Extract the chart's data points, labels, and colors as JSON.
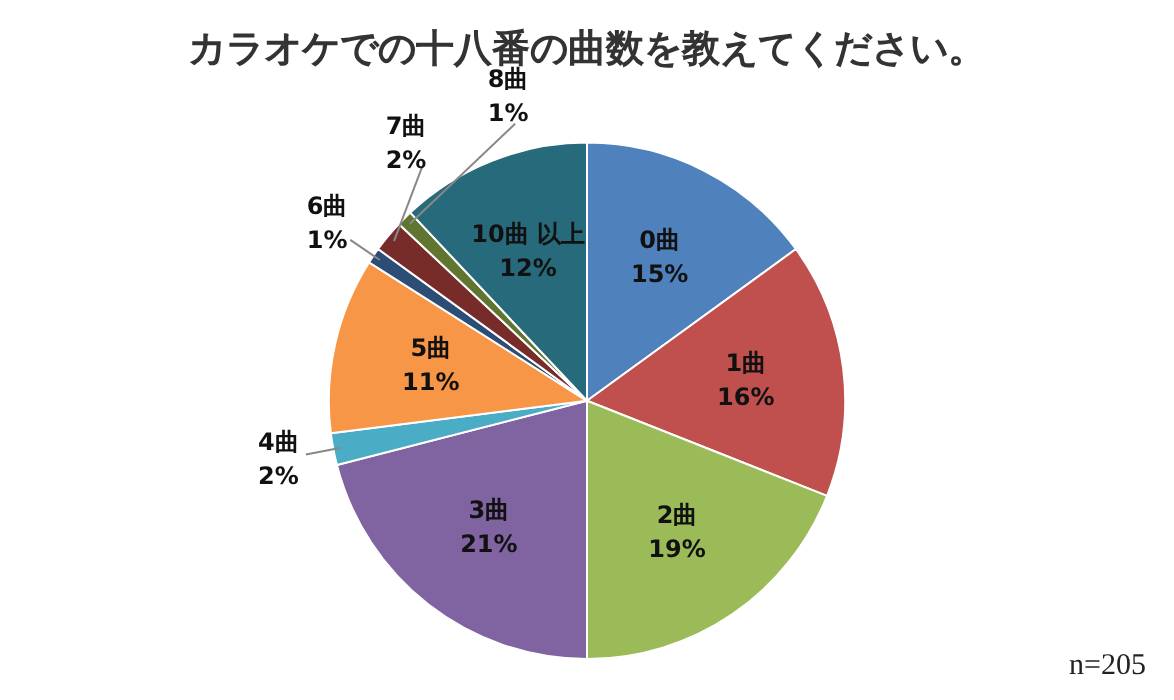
{
  "chart_data": {
    "type": "pie",
    "title": "カラオケでの十八番の曲数を教えてください。",
    "categories": [
      "0曲",
      "1曲",
      "2曲",
      "3曲",
      "4曲",
      "5曲",
      "6曲",
      "7曲",
      "8曲",
      "10曲 以上"
    ],
    "values": [
      15,
      16,
      19,
      21,
      2,
      11,
      1,
      2,
      1,
      12
    ],
    "colors": [
      "#4f81bd",
      "#c0504d",
      "#9bbb59",
      "#8064a2",
      "#4bacc6",
      "#f79646",
      "#2c4d75",
      "#772c2a",
      "#5f7530",
      "#276a7c"
    ],
    "value_labels": [
      "15%",
      "16%",
      "19%",
      "21%",
      "2%",
      "11%",
      "1%",
      "2%",
      "1%",
      "12%"
    ],
    "legend": false,
    "annotations": [
      "n=205"
    ]
  }
}
